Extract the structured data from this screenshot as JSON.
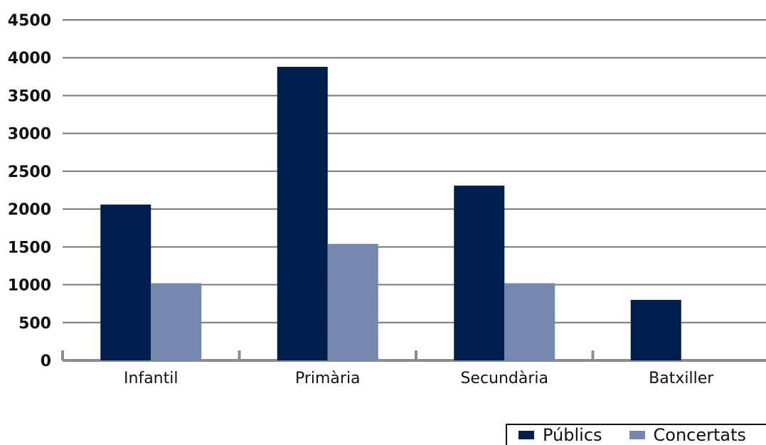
{
  "colors": {
    "Públics": "#001e4d",
    "Concertats": "#7588ae",
    "grid": "#777777",
    "axis": "#8c8c8c"
  },
  "chart_data": {
    "type": "bar",
    "title": "",
    "xlabel": "",
    "ylabel": "",
    "categories": [
      "Infantil",
      "Primària",
      "Secundària",
      "Batxiller"
    ],
    "series": [
      {
        "name": "Públics",
        "values": [
          2060,
          3880,
          2310,
          800
        ]
      },
      {
        "name": "Concertats",
        "values": [
          1020,
          1540,
          1020,
          0
        ]
      }
    ],
    "ylim": [
      0,
      4500
    ],
    "yticks": [
      0,
      500,
      1000,
      1500,
      2000,
      2500,
      3000,
      3500,
      4000,
      4500
    ],
    "grid": true,
    "legend_position": "bottom-right"
  }
}
